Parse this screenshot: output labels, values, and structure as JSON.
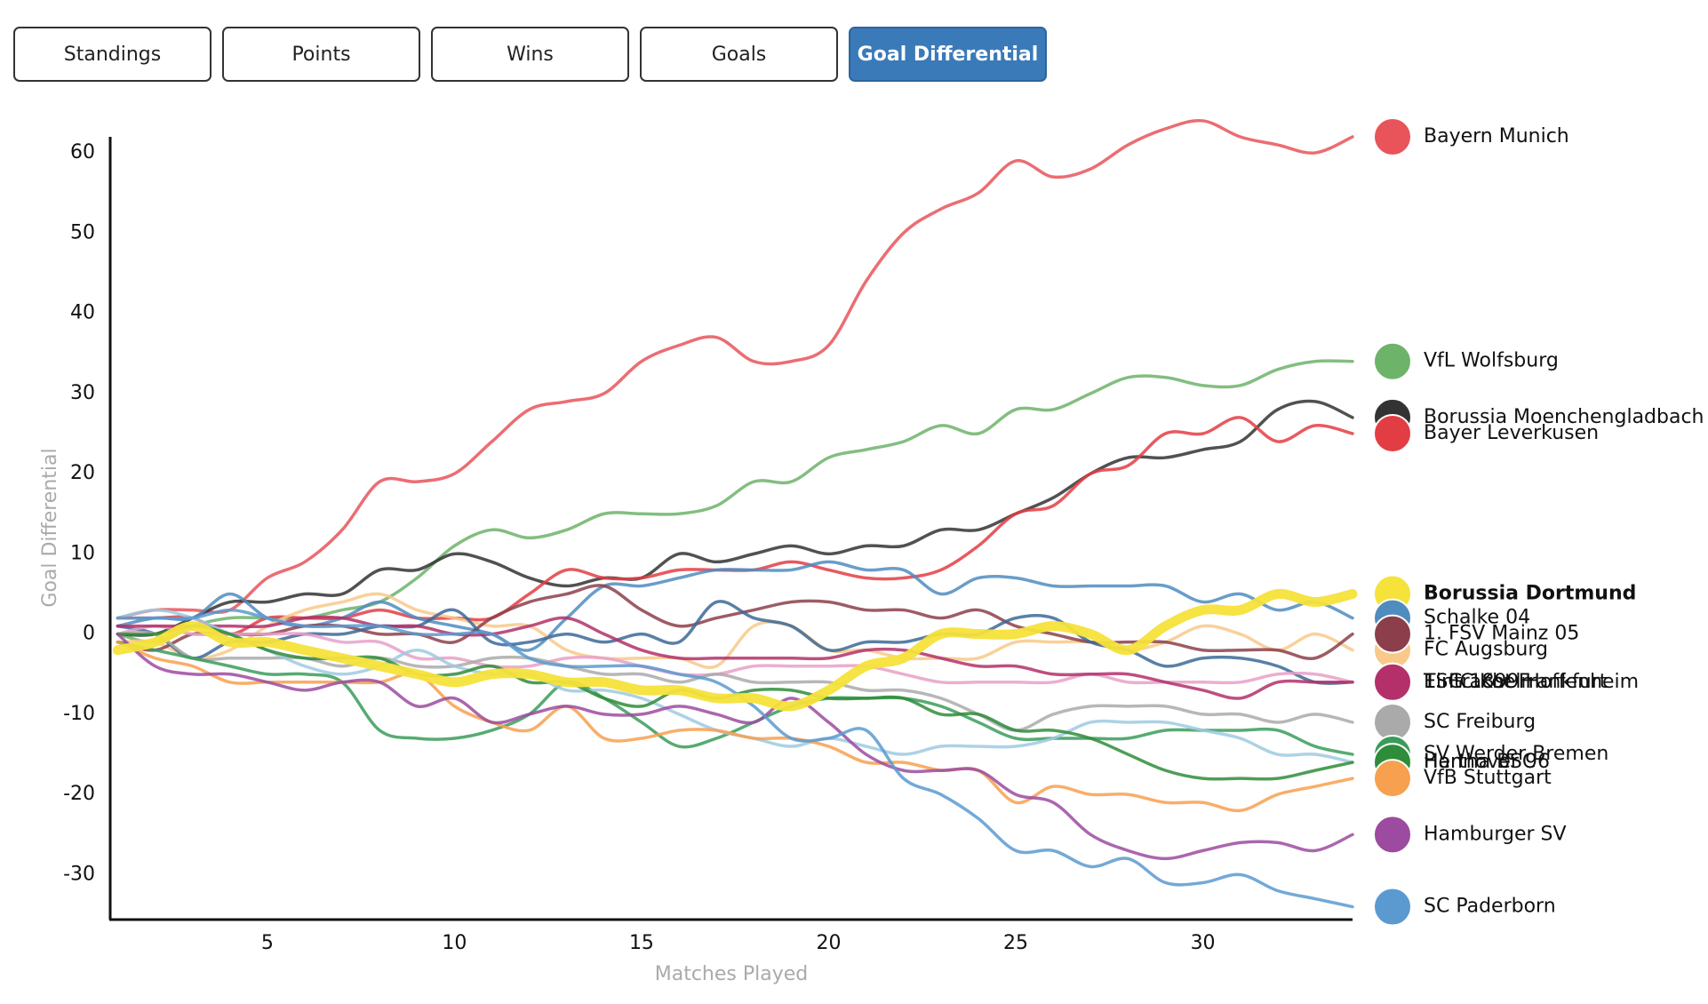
{
  "tabs": {
    "items": [
      "Standings",
      "Points",
      "Wins",
      "Goals",
      "Goal Differential"
    ],
    "active": 4
  },
  "chart_data": {
    "type": "line",
    "x_label": "Matches Played",
    "y_label": "Goal Differential",
    "x": [
      1,
      2,
      3,
      4,
      5,
      6,
      7,
      8,
      9,
      10,
      11,
      12,
      13,
      14,
      15,
      16,
      17,
      18,
      19,
      20,
      21,
      22,
      23,
      24,
      25,
      26,
      27,
      28,
      29,
      30,
      31,
      32,
      33,
      34
    ],
    "xlim": [
      0.8,
      34
    ],
    "xticks": [
      5,
      10,
      15,
      20,
      25,
      30
    ],
    "ylim": [
      -35.6,
      62
    ],
    "yticks": [
      -30,
      -20,
      -10,
      0,
      10,
      20,
      30,
      40,
      50,
      60
    ],
    "series": [
      {
        "name": "Bayern Munich",
        "color": "#e8545a",
        "values": [
          2,
          3,
          3,
          3,
          7,
          9,
          13,
          19,
          19,
          20,
          24,
          28,
          29,
          30,
          34,
          36,
          37,
          34,
          34,
          36,
          44,
          50,
          53,
          55,
          59,
          57,
          58,
          61,
          63,
          64,
          62,
          61,
          60,
          62
        ]
      },
      {
        "name": "VfL Wolfsburg",
        "color": "#6db36a",
        "values": [
          0,
          -1,
          1,
          2,
          2,
          2,
          3,
          4,
          7,
          11,
          13,
          12,
          13,
          15,
          15,
          15,
          16,
          19,
          19,
          22,
          23,
          24,
          26,
          25,
          28,
          28,
          30,
          32,
          32,
          31,
          31,
          33,
          34,
          34
        ]
      },
      {
        "name": "Borussia Moenchengladbach",
        "color": "#333333",
        "values": [
          0,
          0,
          2,
          4,
          4,
          5,
          5,
          8,
          8,
          10,
          9,
          7,
          6,
          7,
          7,
          10,
          9,
          10,
          11,
          10,
          11,
          11,
          13,
          13,
          15,
          17,
          20,
          22,
          22,
          23,
          24,
          28,
          29,
          27
        ]
      },
      {
        "name": "Bayer Leverkusen",
        "color": "#e33d44",
        "values": [
          2,
          2,
          2,
          0,
          2,
          2,
          2,
          3,
          2,
          2,
          2,
          5,
          8,
          7,
          7,
          8,
          8,
          8,
          9,
          8,
          7,
          7,
          8,
          11,
          15,
          16,
          20,
          21,
          25,
          25,
          27,
          24,
          26,
          25
        ]
      },
      {
        "name": "Borussia Dortmund",
        "color": "#f5e23a",
        "highlight": true,
        "values": [
          -2,
          -1,
          1,
          -1,
          -1,
          -2,
          -3,
          -4,
          -5,
          -6,
          -5,
          -5,
          -6,
          -6,
          -7,
          -7,
          -8,
          -8,
          -9,
          -7,
          -4,
          -3,
          0,
          0,
          0,
          1,
          0,
          -2,
          1,
          3,
          3,
          5,
          4,
          5
        ]
      },
      {
        "name": "Schalke 04",
        "color": "#4f8cc0",
        "values": [
          1,
          2,
          2,
          5,
          2,
          1,
          2,
          4,
          2,
          1,
          0,
          -2,
          2,
          6,
          6,
          7,
          8,
          8,
          8,
          9,
          8,
          8,
          5,
          7,
          7,
          6,
          6,
          6,
          6,
          4,
          5,
          3,
          4,
          2
        ]
      },
      {
        "name": "FC Augsburg",
        "color": "#f8c98a",
        "values": [
          -1,
          -1,
          -3,
          -2,
          1,
          3,
          4,
          5,
          3,
          2,
          1,
          1,
          -2,
          -3,
          -3,
          -3,
          -4,
          1,
          1,
          -2,
          -2,
          -3,
          -3,
          -3,
          -1,
          -1,
          -1,
          -2,
          -1,
          1,
          0,
          -2,
          0,
          -2
        ]
      },
      {
        "name": "1. FSV Mainz 05",
        "color": "#8c3f4a",
        "values": [
          -1,
          -2,
          0,
          0,
          0,
          1,
          1,
          0,
          0,
          -1,
          2,
          4,
          5,
          6,
          3,
          1,
          2,
          3,
          4,
          4,
          3,
          3,
          2,
          3,
          1,
          0,
          -1,
          -1,
          -1,
          -2,
          -2,
          -2,
          -3,
          0
        ]
      },
      {
        "name": "Eintracht Frankfurt",
        "color": "#3c6896",
        "values": [
          1,
          0,
          -3,
          -1,
          -1,
          0,
          0,
          1,
          1,
          3,
          -1,
          -1,
          0,
          -1,
          0,
          -1,
          4,
          2,
          1,
          -2,
          -1,
          -1,
          0,
          0,
          2,
          2,
          -1,
          -2,
          -4,
          -3,
          -3,
          -4,
          -6,
          -6
        ]
      },
      {
        "name": "1. FC Koeln",
        "color": "#e8a0c8",
        "values": [
          0,
          1,
          0,
          0,
          0,
          0,
          -1,
          -1,
          -3,
          -3,
          -4,
          -4,
          -3,
          -3,
          -4,
          -5,
          -5,
          -4,
          -4,
          -4,
          -4,
          -5,
          -6,
          -6,
          -6,
          -6,
          -5,
          -6,
          -6,
          -6,
          -6,
          -5,
          -5,
          -6
        ]
      },
      {
        "name": "TSG 1899 Hoffenheim",
        "color": "#b3306a",
        "values": [
          1,
          1,
          1,
          1,
          1,
          2,
          2,
          1,
          1,
          0,
          0,
          1,
          2,
          0,
          -2,
          -3,
          -3,
          -3,
          -3,
          -3,
          -2,
          -2,
          -3,
          -4,
          -4,
          -5,
          -5,
          -5,
          -6,
          -7,
          -8,
          -6,
          -6,
          -6
        ]
      },
      {
        "name": "SC Freiburg",
        "color": "#aaaaaa",
        "values": [
          0,
          0,
          -3,
          -3,
          -3,
          -3,
          -4,
          -3,
          -4,
          -4,
          -3,
          -3,
          -4,
          -5,
          -5,
          -6,
          -5,
          -6,
          -6,
          -6,
          -7,
          -7,
          -8,
          -10,
          -12,
          -10,
          -9,
          -9,
          -9,
          -10,
          -10,
          -11,
          -10,
          -11
        ]
      },
      {
        "name": "SV Werder Bremen",
        "color": "#3a9c5a",
        "values": [
          -1,
          -2,
          -3,
          -4,
          -5,
          -5,
          -6,
          -12,
          -13,
          -13,
          -12,
          -10,
          -6,
          -8,
          -11,
          -14,
          -13,
          -11,
          -9,
          -8,
          -8,
          -8,
          -9,
          -11,
          -13,
          -13,
          -13,
          -13,
          -12,
          -12,
          -12,
          -12,
          -14,
          -15
        ]
      },
      {
        "name": "Hannover 96",
        "color": "#9ecae1",
        "values": [
          2,
          3,
          2,
          0,
          -2,
          -4,
          -5,
          -4,
          -2,
          -4,
          -5,
          -5,
          -7,
          -7,
          -8,
          -10,
          -12,
          -13,
          -14,
          -13,
          -14,
          -15,
          -14,
          -14,
          -14,
          -13,
          -11,
          -11,
          -11,
          -12,
          -13,
          -15,
          -15,
          -16
        ]
      },
      {
        "name": "Hertha BSC",
        "color": "#2f8c3a",
        "values": [
          0,
          0,
          1,
          0,
          -2,
          -3,
          -3,
          -3,
          -5,
          -5,
          -4,
          -6,
          -6,
          -8,
          -9,
          -7,
          -8,
          -7,
          -7,
          -8,
          -8,
          -8,
          -10,
          -10,
          -12,
          -12,
          -13,
          -15,
          -17,
          -18,
          -18,
          -18,
          -17,
          -16
        ]
      },
      {
        "name": "VfB Stuttgart",
        "color": "#f7a04f",
        "values": [
          -1,
          -3,
          -4,
          -6,
          -6,
          -6,
          -6,
          -6,
          -5,
          -9,
          -11,
          -12,
          -9,
          -13,
          -13,
          -12,
          -12,
          -13,
          -13,
          -14,
          -16,
          -16,
          -17,
          -17,
          -21,
          -19,
          -20,
          -20,
          -21,
          -21,
          -22,
          -20,
          -19,
          -18
        ]
      },
      {
        "name": "Hamburger SV",
        "color": "#9c4ba0",
        "values": [
          0,
          -4,
          -5,
          -5,
          -6,
          -7,
          -6,
          -6,
          -9,
          -8,
          -11,
          -10,
          -9,
          -10,
          -10,
          -9,
          -10,
          -11,
          -8,
          -11,
          -15,
          -17,
          -17,
          -17,
          -20,
          -21,
          -25,
          -27,
          -28,
          -27,
          -26,
          -26,
          -27,
          -25
        ]
      },
      {
        "name": "SC Paderborn",
        "color": "#5b9ad0",
        "values": [
          2,
          2,
          2,
          3,
          2,
          1,
          1,
          1,
          0,
          0,
          0,
          -3,
          -4,
          -4,
          -4,
          -5,
          -6,
          -9,
          -13,
          -13,
          -12,
          -18,
          -20,
          -23,
          -27,
          -27,
          -29,
          -28,
          -31,
          -31,
          -30,
          -32,
          -33,
          -34
        ]
      }
    ]
  }
}
